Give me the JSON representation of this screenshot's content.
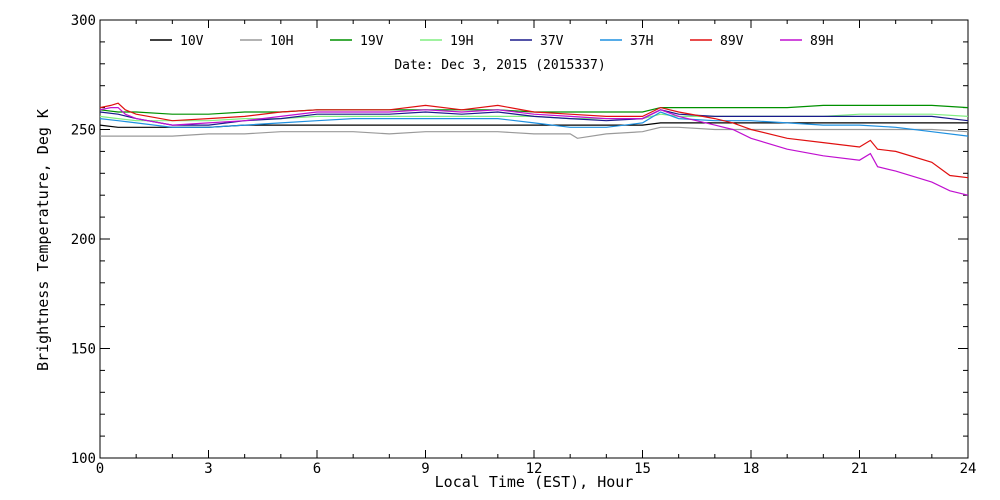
{
  "chart_data": {
    "type": "line",
    "title": "Date: Dec  3, 2015 (2015337)",
    "xlabel": "Local Time (EST), Hour",
    "ylabel": "Brightness Temperature, Deg K",
    "xlim": [
      0,
      24
    ],
    "ylim": [
      100,
      300
    ],
    "xticks": [
      0,
      3,
      6,
      9,
      12,
      15,
      18,
      21,
      24
    ],
    "yticks": [
      100,
      150,
      200,
      250,
      300
    ],
    "grid": false,
    "legend_position": "top",
    "series": [
      {
        "name": "10V",
        "color": "#000000",
        "x": [
          0,
          0.5,
          1,
          2,
          3,
          4,
          5,
          6,
          7,
          8,
          9,
          10,
          11,
          12,
          13,
          14,
          15,
          15.5,
          16,
          17,
          18,
          19,
          20,
          21,
          22,
          23,
          24
        ],
        "y": [
          252,
          251,
          251,
          251,
          251,
          252,
          252,
          252,
          252,
          252,
          252,
          252,
          252,
          252,
          252,
          252,
          252,
          253,
          253,
          253,
          253,
          253,
          253,
          253,
          253,
          253,
          253
        ]
      },
      {
        "name": "10H",
        "color": "#9a9a9a",
        "x": [
          0,
          0.5,
          1,
          2,
          3,
          4,
          5,
          6,
          7,
          8,
          9,
          10,
          11,
          12,
          13,
          13.2,
          14,
          15,
          15.5,
          16,
          17,
          18,
          19,
          20,
          21,
          22,
          23,
          24
        ],
        "y": [
          247,
          247,
          247,
          247,
          248,
          248,
          249,
          249,
          249,
          248,
          249,
          249,
          249,
          248,
          248,
          246,
          248,
          249,
          251,
          251,
          250,
          250,
          250,
          250,
          250,
          250,
          250,
          249
        ]
      },
      {
        "name": "19V",
        "color": "#009000",
        "x": [
          0,
          0.5,
          1,
          2,
          3,
          4,
          5,
          6,
          7,
          8,
          9,
          10,
          11,
          12,
          13,
          14,
          15,
          15.5,
          16,
          17,
          18,
          19,
          20,
          21,
          22,
          23,
          24
        ],
        "y": [
          259,
          258,
          258,
          257,
          257,
          258,
          258,
          259,
          259,
          259,
          259,
          259,
          259,
          258,
          258,
          258,
          258,
          260,
          260,
          260,
          260,
          260,
          261,
          261,
          261,
          261,
          260
        ]
      },
      {
        "name": "19H",
        "color": "#80ee80",
        "x": [
          0,
          0.5,
          1,
          2,
          3,
          4,
          5,
          6,
          7,
          8,
          9,
          10,
          11,
          12,
          13,
          14,
          15,
          15.5,
          16,
          17,
          18,
          19,
          20,
          21,
          22,
          23,
          24
        ],
        "y": [
          256,
          255,
          254,
          254,
          254,
          255,
          255,
          256,
          256,
          256,
          256,
          256,
          256,
          256,
          255,
          255,
          255,
          257,
          256,
          256,
          256,
          256,
          256,
          257,
          257,
          257,
          256
        ]
      },
      {
        "name": "37V",
        "color": "#1a1a8c",
        "x": [
          0,
          0.5,
          1,
          2,
          3,
          4,
          5,
          6,
          7,
          8,
          9,
          10,
          11,
          12,
          13,
          14,
          15,
          15.5,
          16,
          17,
          18,
          19,
          20,
          21,
          22,
          23,
          24
        ],
        "y": [
          258,
          257,
          255,
          252,
          252,
          254,
          255,
          257,
          257,
          257,
          258,
          257,
          258,
          256,
          255,
          254,
          255,
          259,
          257,
          256,
          256,
          256,
          256,
          256,
          256,
          256,
          254
        ]
      },
      {
        "name": "37H",
        "color": "#1e90e0",
        "x": [
          0,
          0.5,
          1,
          2,
          3,
          4,
          5,
          6,
          7,
          8,
          9,
          10,
          11,
          12,
          13,
          14,
          15,
          15.5,
          16,
          17,
          18,
          19,
          20,
          21,
          22,
          23,
          24
        ],
        "y": [
          255,
          254,
          253,
          251,
          251,
          252,
          253,
          254,
          255,
          255,
          255,
          255,
          255,
          253,
          251,
          251,
          253,
          258,
          255,
          254,
          254,
          253,
          252,
          252,
          251,
          249,
          247
        ]
      },
      {
        "name": "89V",
        "color": "#e01010",
        "x": [
          0,
          0.3,
          0.5,
          0.7,
          1,
          2,
          3,
          4,
          5,
          6,
          7,
          8,
          9,
          10,
          11,
          12,
          13,
          14,
          15,
          15.5,
          16,
          17,
          17.5,
          18,
          19,
          20,
          21,
          21.3,
          21.5,
          22,
          23,
          23.5,
          24
        ],
        "y": [
          260,
          261,
          262,
          259,
          257,
          254,
          255,
          256,
          258,
          259,
          259,
          259,
          261,
          259,
          261,
          258,
          257,
          256,
          256,
          260,
          258,
          255,
          253,
          250,
          246,
          244,
          242,
          245,
          241,
          240,
          235,
          229,
          228
        ]
      },
      {
        "name": "89H",
        "color": "#c010d0",
        "x": [
          0,
          0.3,
          0.5,
          0.7,
          1,
          2,
          3,
          4,
          5,
          6,
          7,
          8,
          9,
          10,
          11,
          12,
          13,
          14,
          15,
          15.5,
          16,
          17,
          17.5,
          18,
          19,
          20,
          21,
          21.3,
          21.5,
          22,
          23,
          23.5,
          24
        ],
        "y": [
          259,
          260,
          260,
          257,
          255,
          252,
          253,
          254,
          256,
          258,
          258,
          258,
          259,
          258,
          259,
          257,
          256,
          255,
          255,
          259,
          256,
          252,
          250,
          246,
          241,
          238,
          236,
          239,
          233,
          231,
          226,
          222,
          220
        ]
      }
    ]
  }
}
